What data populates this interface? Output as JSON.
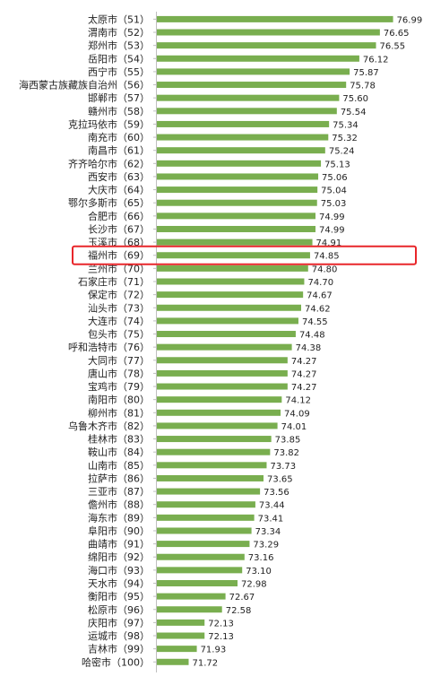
{
  "chart_data": {
    "type": "bar",
    "orientation": "horizontal",
    "title": "",
    "xlabel": "",
    "ylabel": "",
    "grid": false,
    "bar_color": "#79ae4f",
    "highlight_color": "#e8262a",
    "highlight_index": 18,
    "xlim": [
      70.9,
      77.0
    ],
    "categories": [
      "太原市（51）",
      "渭南市（52）",
      "郑州市（53）",
      "岳阳市（54）",
      "西宁市（55）",
      "海西蒙古族藏族自治州（56）",
      "邯郸市（57）",
      "赣州市（58）",
      "克拉玛依市（59）",
      "南充市（60）",
      "南昌市（61）",
      "齐齐哈尔市（62）",
      "西安市（63）",
      "大庆市（64）",
      "鄂尔多斯市（65）",
      "合肥市（66）",
      "长沙市（67）",
      "玉溪市（68）",
      "福州市（69）",
      "兰州市（70）",
      "石家庄市（71）",
      "保定市（72）",
      "汕头市（73）",
      "大连市（74）",
      "包头市（75）",
      "呼和浩特市（76）",
      "大同市（77）",
      "唐山市（78）",
      "宝鸡市（79）",
      "南阳市（80）",
      "柳州市（81）",
      "乌鲁木齐市（82）",
      "桂林市（83）",
      "鞍山市（84）",
      "山南市（85）",
      "拉萨市（86）",
      "三亚市（87）",
      "儋州市（88）",
      "海东市（89）",
      "阜阳市（90）",
      "曲靖市（91）",
      "绵阳市（92）",
      "海口市（93）",
      "天水市（94）",
      "衡阳市（95）",
      "松原市（96）",
      "庆阳市（97）",
      "运城市（98）",
      "吉林市（99）",
      "哈密市（100）"
    ],
    "values": [
      76.99,
      76.65,
      76.55,
      76.12,
      75.87,
      75.78,
      75.6,
      75.54,
      75.34,
      75.32,
      75.24,
      75.13,
      75.06,
      75.04,
      75.03,
      74.99,
      74.99,
      74.91,
      74.85,
      74.8,
      74.7,
      74.67,
      74.62,
      74.55,
      74.48,
      74.38,
      74.27,
      74.27,
      74.27,
      74.12,
      74.09,
      74.01,
      73.85,
      73.82,
      73.73,
      73.65,
      73.56,
      73.44,
      73.41,
      73.34,
      73.29,
      73.16,
      73.1,
      72.98,
      72.67,
      72.58,
      72.13,
      72.13,
      71.93,
      71.72
    ],
    "value_labels": [
      "76.99",
      "76.65",
      "76.55",
      "76.12",
      "75.87",
      "75.78",
      "75.60",
      "75.54",
      "75.34",
      "75.32",
      "75.24",
      "75.13",
      "75.06",
      "75.04",
      "75.03",
      "74.99",
      "74.99",
      "74.91",
      "74.85",
      "74.80",
      "74.70",
      "74.67",
      "74.62",
      "74.55",
      "74.48",
      "74.38",
      "74.27",
      "74.27",
      "74.27",
      "74.12",
      "74.09",
      "74.01",
      "73.85",
      "73.82",
      "73.73",
      "73.65",
      "73.56",
      "73.44",
      "73.41",
      "73.34",
      "73.29",
      "73.16",
      "73.10",
      "72.98",
      "72.67",
      "72.58",
      "72.13",
      "72.13",
      "71.93",
      "71.72"
    ]
  }
}
